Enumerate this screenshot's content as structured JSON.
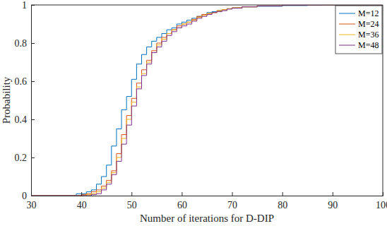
{
  "chart_data": {
    "type": "step",
    "x_label": "Number of iterations for D-DIP",
    "y_label": "Probability",
    "x": [
      30,
      39,
      40,
      41,
      42,
      43,
      44,
      45,
      46,
      47,
      48,
      49,
      50,
      51,
      52,
      53,
      54,
      55,
      56,
      57,
      58,
      59,
      60,
      61,
      62,
      63,
      64,
      65,
      66,
      67,
      68,
      69,
      70,
      72,
      75,
      80,
      85,
      88,
      93,
      100
    ],
    "series": [
      {
        "name": "M=12",
        "color": "#0072BD",
        "values": [
          0,
          0.01,
          0.01,
          0.02,
          0.03,
          0.06,
          0.1,
          0.16,
          0.26,
          0.35,
          0.45,
          0.52,
          0.61,
          0.69,
          0.74,
          0.78,
          0.81,
          0.83,
          0.85,
          0.87,
          0.88,
          0.9,
          0.91,
          0.92,
          0.93,
          0.94,
          0.95,
          0.96,
          0.965,
          0.97,
          0.975,
          0.98,
          0.985,
          0.99,
          0.993,
          0.997,
          0.998,
          0.999,
          1,
          1
        ]
      },
      {
        "name": "M=24",
        "color": "#D95319",
        "values": [
          0,
          0,
          0.005,
          0.01,
          0.02,
          0.03,
          0.05,
          0.08,
          0.13,
          0.22,
          0.32,
          0.42,
          0.51,
          0.59,
          0.66,
          0.71,
          0.76,
          0.8,
          0.83,
          0.85,
          0.87,
          0.89,
          0.9,
          0.91,
          0.925,
          0.94,
          0.95,
          0.955,
          0.96,
          0.97,
          0.975,
          0.98,
          0.985,
          0.99,
          0.995,
          0.998,
          0.999,
          1,
          1,
          1
        ]
      },
      {
        "name": "M=36",
        "color": "#EDB120",
        "values": [
          0,
          0,
          0,
          0.005,
          0.01,
          0.02,
          0.04,
          0.07,
          0.12,
          0.2,
          0.3,
          0.4,
          0.49,
          0.57,
          0.64,
          0.7,
          0.75,
          0.79,
          0.82,
          0.85,
          0.87,
          0.88,
          0.9,
          0.91,
          0.92,
          0.935,
          0.945,
          0.955,
          0.96,
          0.97,
          0.975,
          0.98,
          0.985,
          0.99,
          0.995,
          0.998,
          0.999,
          1,
          1,
          1
        ]
      },
      {
        "name": "M=48",
        "color": "#7E2F8E",
        "values": [
          0,
          0,
          0,
          0,
          0.005,
          0.01,
          0.03,
          0.06,
          0.11,
          0.18,
          0.27,
          0.37,
          0.47,
          0.56,
          0.63,
          0.69,
          0.75,
          0.78,
          0.81,
          0.84,
          0.86,
          0.88,
          0.89,
          0.9,
          0.915,
          0.93,
          0.94,
          0.95,
          0.96,
          0.965,
          0.97,
          0.978,
          0.983,
          0.99,
          0.995,
          0.998,
          0.999,
          1,
          1,
          1
        ]
      }
    ],
    "xlim": [
      30,
      100
    ],
    "xticks": [
      30,
      40,
      50,
      60,
      70,
      80,
      90,
      100
    ],
    "ylim": [
      0,
      1
    ],
    "yticks": [
      0,
      0.2,
      0.4,
      0.6,
      0.8,
      1
    ],
    "legend": "northeast"
  }
}
